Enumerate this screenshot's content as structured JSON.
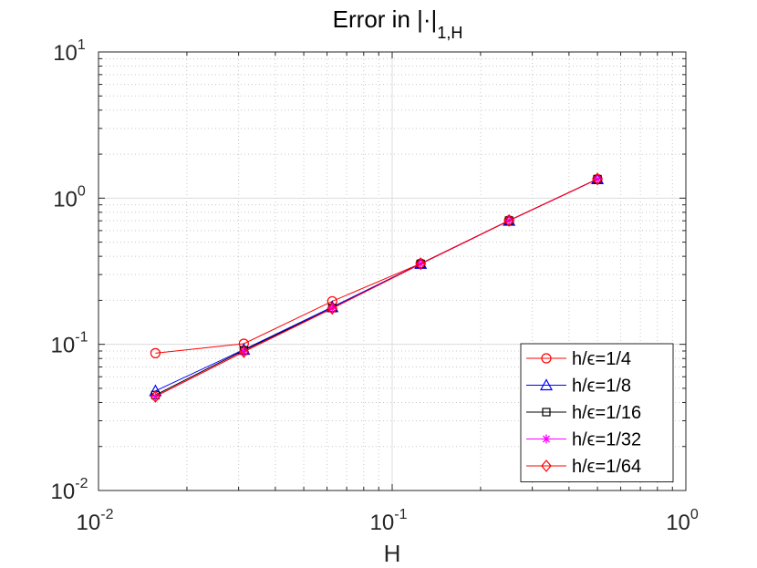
{
  "chart_data": {
    "type": "line",
    "title": "Error in |·|",
    "title_subscript": "1,H",
    "xlabel": "H",
    "ylabel": "",
    "xscale": "log",
    "yscale": "log",
    "xlim": [
      0.01,
      1
    ],
    "ylim": [
      0.01,
      10
    ],
    "grid": true,
    "minor_grid": true,
    "legend_position": "bottom-right",
    "x_ticks": [
      {
        "base": "10",
        "exp": "-2"
      },
      {
        "base": "10",
        "exp": "-1"
      },
      {
        "base": "10",
        "exp": "0"
      }
    ],
    "y_ticks": [
      {
        "base": "10",
        "exp": "-2"
      },
      {
        "base": "10",
        "exp": "-1"
      },
      {
        "base": "10",
        "exp": "0"
      },
      {
        "base": "10",
        "exp": "1"
      }
    ],
    "x": [
      0.015625,
      0.03125,
      0.0625,
      0.125,
      0.25,
      0.5
    ],
    "series": [
      {
        "name": "h/ϵ=1/4",
        "color": "#ff0000",
        "marker": "circle",
        "values": [
          0.087,
          0.101,
          0.197,
          0.357,
          0.703,
          1.35
        ]
      },
      {
        "name": "h/ϵ=1/8",
        "color": "#0000ff",
        "marker": "triangle",
        "values": [
          0.048,
          0.092,
          0.18,
          0.356,
          0.702,
          1.35
        ]
      },
      {
        "name": "h/ϵ=1/16",
        "color": "#000000",
        "marker": "square",
        "values": [
          0.045,
          0.091,
          0.177,
          0.355,
          0.702,
          1.35
        ]
      },
      {
        "name": "h/ϵ=1/32",
        "color": "#ff00ff",
        "marker": "star",
        "values": [
          0.044,
          0.089,
          0.176,
          0.355,
          0.702,
          1.35
        ]
      },
      {
        "name": "h/ϵ=1/64",
        "color": "#ff0000",
        "marker": "diamond",
        "values": [
          0.044,
          0.089,
          0.176,
          0.355,
          0.702,
          1.35
        ]
      }
    ]
  }
}
